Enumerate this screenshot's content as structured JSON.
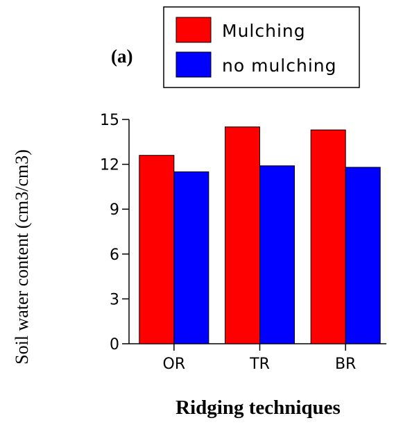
{
  "chart_data": {
    "type": "bar",
    "panel_label": "(a)",
    "categories": [
      "OR",
      "TR",
      "BR"
    ],
    "series": [
      {
        "name": "Mulching",
        "values": [
          12.6,
          14.5,
          14.3
        ],
        "color": "#ff0000"
      },
      {
        "name": "no mulching",
        "values": [
          11.5,
          11.9,
          11.8
        ],
        "color": "#0000ff"
      }
    ],
    "ylabel": "Soil water content (cm3/cm3)",
    "xlabel": "Ridging techniques",
    "ylim": [
      0,
      15
    ],
    "yticks": [
      "0",
      "3",
      "6",
      "9",
      "12",
      "15"
    ],
    "legend": {
      "placement": "top-right",
      "labels": [
        "Mulching",
        "no mulching"
      ]
    },
    "grid": false
  }
}
